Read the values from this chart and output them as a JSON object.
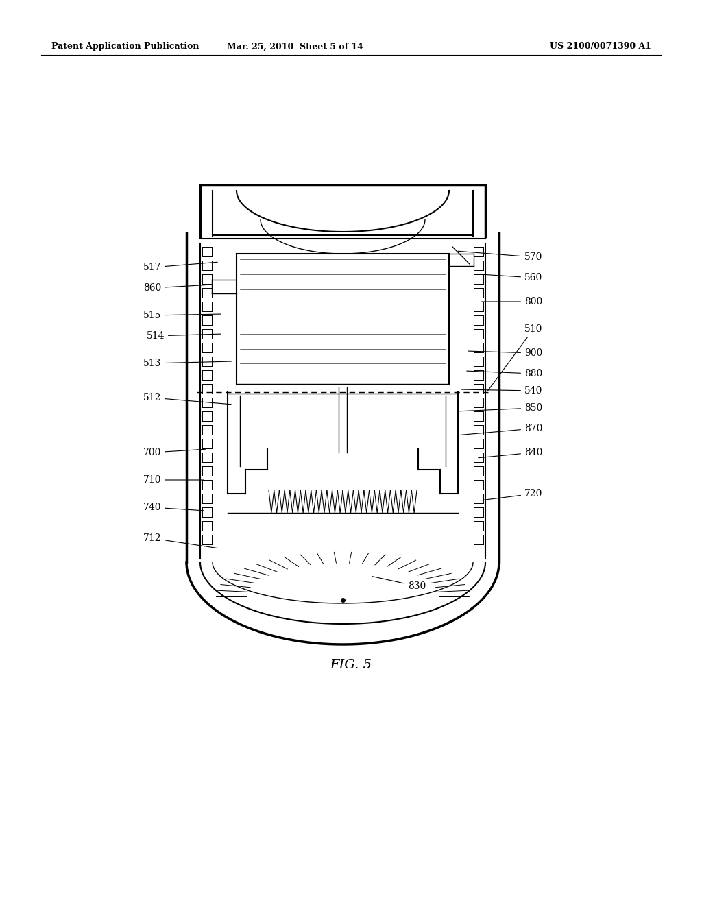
{
  "bg_color": "#ffffff",
  "header_left": "Patent Application Publication",
  "header_mid": "Mar. 25, 2010  Sheet 5 of 14",
  "header_right": "US 2100/0071390 A1",
  "fig_label": "FIG. 5",
  "label_fontsize": 10,
  "fig_fontsize": 14
}
